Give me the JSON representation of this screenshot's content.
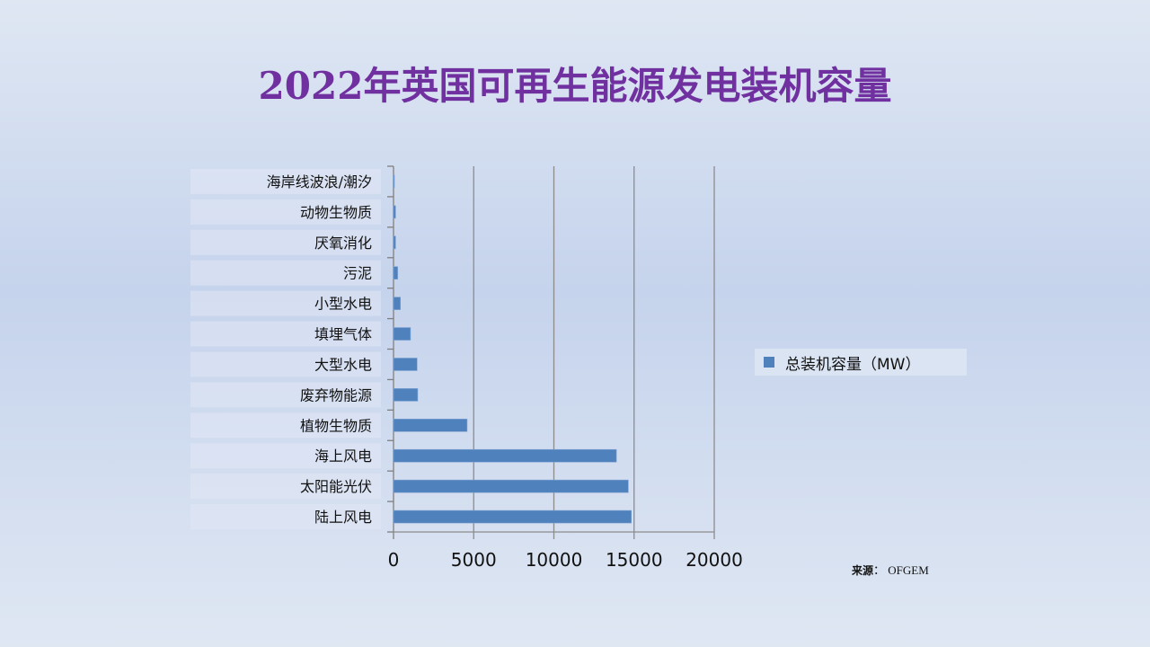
{
  "chart_data": {
    "type": "bar",
    "orientation": "horizontal",
    "title": "2022年英国可再生能源发电装机容量",
    "categories": [
      "海岸线波浪/潮汐",
      "动物生物质",
      "厌氧消化",
      "污泥",
      "小型水电",
      "填埋气体",
      "大型水电",
      "废弃物能源",
      "植物生物质",
      "海上风电",
      "太阳能光伏",
      "陆上风电"
    ],
    "series": [
      {
        "name": "总装机容量（MW）",
        "values": [
          20,
          130,
          130,
          260,
          430,
          1060,
          1470,
          1510,
          4590,
          13900,
          14640,
          14830
        ]
      }
    ],
    "xlim": [
      0,
      20000
    ],
    "xticks": [
      "0",
      "5000",
      "10000",
      "15000",
      "20000"
    ],
    "grid": "vertical",
    "legend": "right",
    "color": "#4f81bd"
  },
  "source": {
    "label": "来源",
    "value": "OFGEM"
  }
}
